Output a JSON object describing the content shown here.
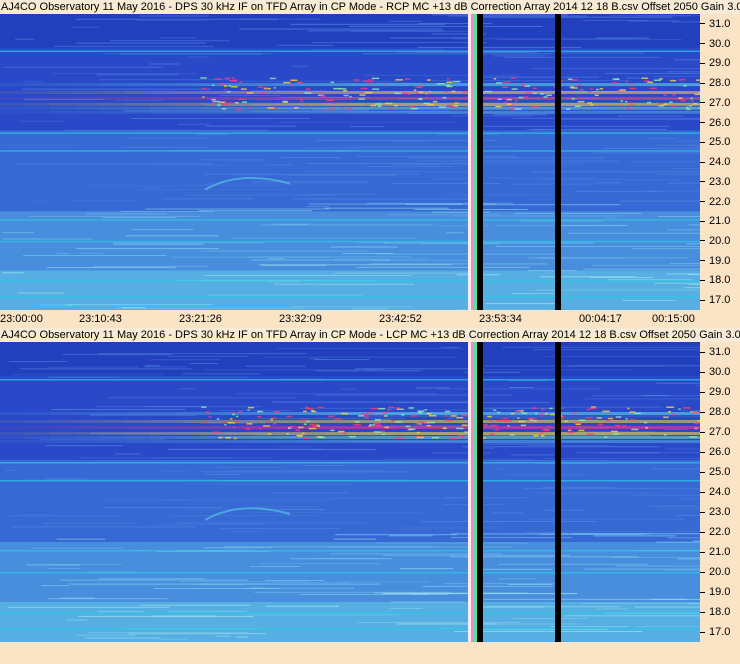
{
  "chart_data": [
    {
      "type": "heatmap",
      "title": "AJ4CO Observatory 11 May 2016 - DPS 30 kHz IF on TFD Array in CP Mode - RCP  MC +13 dB  Correction Array 2014 12 18 B.csv  Offset 2050  Gain 3.0",
      "x_tick_labels": [
        "23:00:00",
        "23:10:43",
        "23:21:26",
        "23:32:09",
        "23:42:52",
        "23:53:34",
        "00:04:17",
        "00:15:00"
      ],
      "y_tick_labels": [
        "31.0",
        "30.0",
        "29.0",
        "28.0",
        "27.0",
        "26.0",
        "25.0",
        "24.0",
        "23.0",
        "22.0",
        "21.0",
        "20.0",
        "19.0",
        "18.0",
        "17.0"
      ],
      "ylim": [
        16.5,
        31.5
      ],
      "colors": {
        "background": "#2a49c9",
        "lowband": "#4f9be0",
        "noise": "#28c9e6",
        "band": "#ffd23c",
        "hot": "#ff3a7a",
        "gap": "#000000"
      }
    },
    {
      "type": "heatmap",
      "title": "AJ4CO Observatory 11 May 2016 - DPS 30 kHz IF on TFD Array in CP Mode - LCP  MC +13 dB  Correction Array 2014 12 18 B.csv  Offset 2050  Gain 3.0",
      "y_tick_labels": [
        "31.0",
        "30.0",
        "29.0",
        "28.0",
        "27.0",
        "26.0",
        "25.0",
        "24.0",
        "23.0",
        "22.0",
        "21.0",
        "20.0",
        "19.0",
        "18.0",
        "17.0"
      ],
      "ylim": [
        16.5,
        31.5
      ],
      "colors": {
        "background": "#2a49c9",
        "lowband": "#4f9be0",
        "noise": "#28c9e6",
        "band": "#ffd23c",
        "hot": "#ff3a7a",
        "gap": "#000000"
      }
    }
  ]
}
